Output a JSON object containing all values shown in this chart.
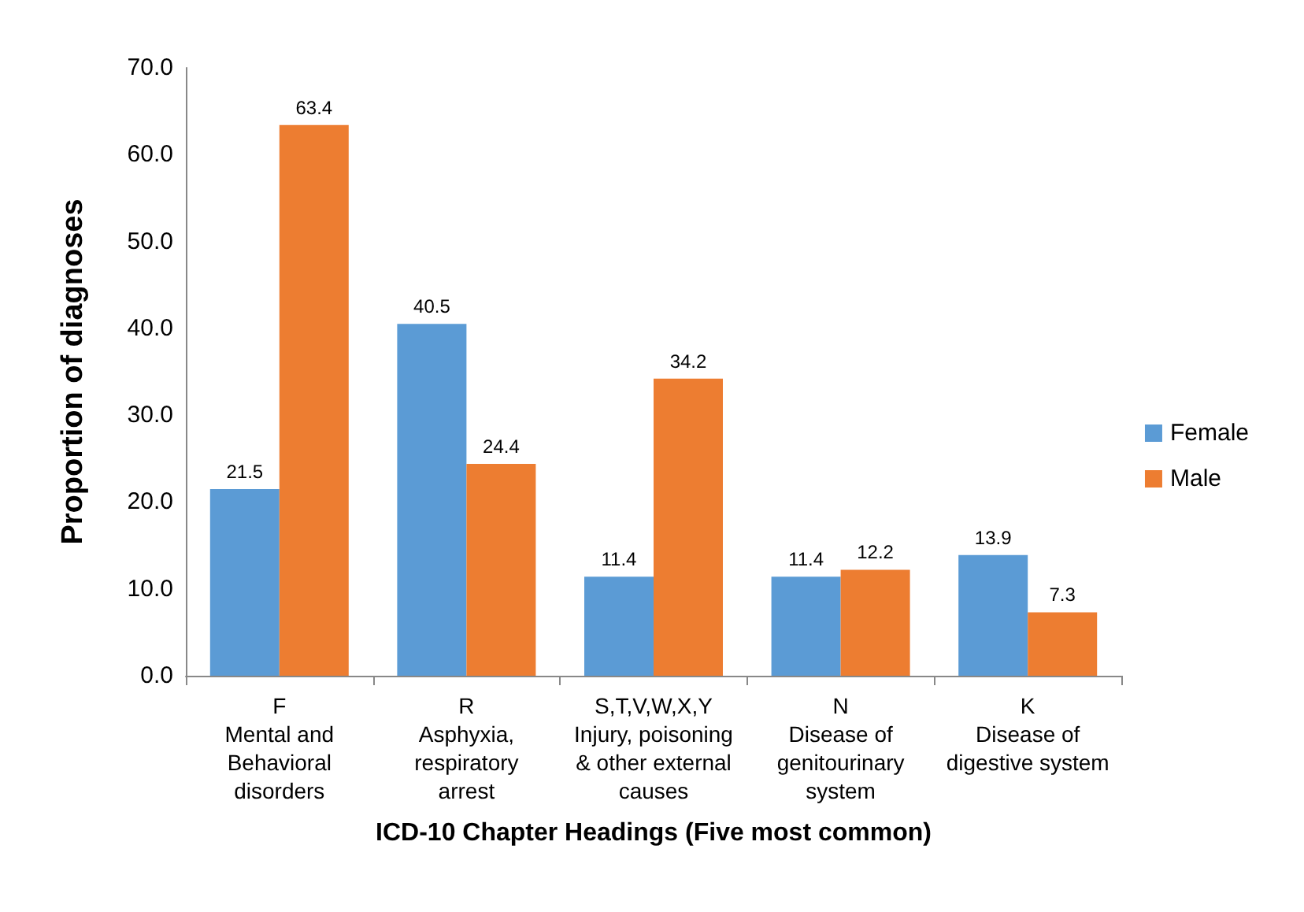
{
  "chart_data": {
    "type": "bar",
    "xlabel": "ICD-10 Chapter Headings (Five most common)",
    "ylabel": "Proportion of diagnoses",
    "categories": [
      "F\nMental and\nBehavioral\ndisorders",
      "R\nAsphyxia,\nrespiratory\narrest",
      "S,T,V,W,X,Y\nInjury, poisoning\n& other external\ncauses",
      "N\nDisease of\ngenitourinary\nsystem",
      "K\nDisease of\ndigestive system"
    ],
    "series": [
      {
        "name": "Female",
        "color": "#5b9bd5",
        "values": [
          21.5,
          40.5,
          11.4,
          11.4,
          13.9
        ]
      },
      {
        "name": "Male",
        "color": "#ed7d31",
        "values": [
          63.4,
          24.4,
          34.2,
          12.2,
          7.3
        ]
      }
    ],
    "ylim": [
      0,
      70
    ],
    "yticks": [
      {
        "value": 0,
        "label": "0.0"
      },
      {
        "value": 10,
        "label": "10.0"
      },
      {
        "value": 20,
        "label": "20.0"
      },
      {
        "value": 30,
        "label": "30.0"
      },
      {
        "value": 40,
        "label": "40.0"
      },
      {
        "value": 50,
        "label": "50.0"
      },
      {
        "value": 60,
        "label": "60.0"
      },
      {
        "value": 70,
        "label": "70.0"
      }
    ],
    "data_labels": true,
    "grid": false,
    "legend": "right"
  }
}
